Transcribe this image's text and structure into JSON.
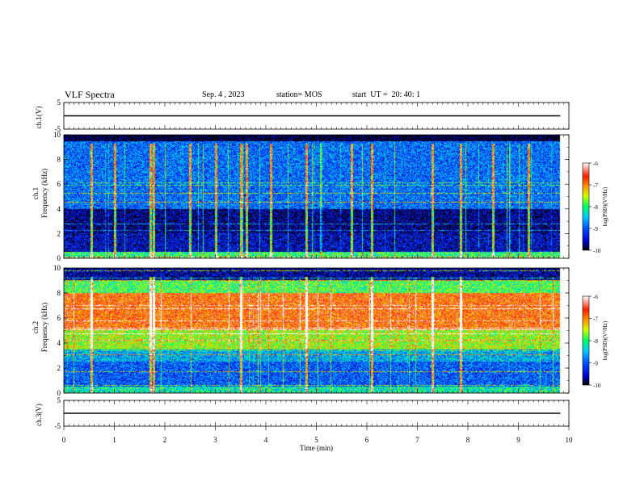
{
  "header": {
    "title": "VLF Spectra",
    "date": "Sep. 4 , 2023",
    "station": "station= MOS",
    "start_ut": "start  UT =  20: 40: 1"
  },
  "chart_data": [
    {
      "type": "line",
      "panel": "ch1-waveform",
      "ylabel": "ch.1(V)",
      "yticks": [
        5,
        -5
      ],
      "ylim": [
        -5,
        5
      ],
      "xlim": [
        0,
        10
      ],
      "trace_level": 0
    },
    {
      "type": "heatmap",
      "panel": "ch1-spectrogram",
      "ylabel_lines": [
        "ch.1",
        "Frequency (kHz)"
      ],
      "ylim": [
        0,
        10
      ],
      "yticks": [
        0,
        2,
        4,
        6,
        8,
        10
      ],
      "xlim": [
        0,
        10
      ],
      "data_end_min": 9.83,
      "colorbar": {
        "label": "log(PSD)(V²/Hz)",
        "range": [
          -10,
          -6
        ],
        "ticks": [
          "-6",
          "-7",
          "-8",
          "-9",
          "-10"
        ]
      },
      "dominant_log_psd_by_band": [
        {
          "band_khz": [
            0,
            0.5
          ],
          "log_psd": -8.0
        },
        {
          "band_khz": [
            0.5,
            2
          ],
          "log_psd": -9.5
        },
        {
          "band_khz": [
            2,
            4
          ],
          "log_psd": -9.7
        },
        {
          "band_khz": [
            4,
            9.5
          ],
          "log_psd": -8.9
        },
        {
          "band_khz": [
            9.5,
            10
          ],
          "log_psd": -10.0
        }
      ],
      "burst_columns_min": [
        0.55,
        1.0,
        1.72,
        1.78,
        2.5,
        3.0,
        3.5,
        3.62,
        4.1,
        4.8,
        5.7,
        6.1,
        7.3,
        7.85,
        8.5,
        9.2
      ]
    },
    {
      "type": "heatmap",
      "panel": "ch2-spectrogram",
      "ylabel_lines": [
        "ch.2",
        "Frequency (kHz)"
      ],
      "ylim": [
        0,
        10
      ],
      "yticks": [
        0,
        2,
        4,
        6,
        8,
        10
      ],
      "xlim": [
        0,
        10
      ],
      "data_end_min": 9.83,
      "colorbar": {
        "label": "log(PSD)(V²/Hz)",
        "range": [
          -10,
          -6
        ],
        "ticks": [
          "-6",
          "-7",
          "-8",
          "-9",
          "-10"
        ]
      },
      "dominant_log_psd_by_band": [
        {
          "band_khz": [
            0,
            0.5
          ],
          "log_psd": -8.2
        },
        {
          "band_khz": [
            0.5,
            2.5
          ],
          "log_psd": -9.0
        },
        {
          "band_khz": [
            2.5,
            3.5
          ],
          "log_psd": -8.6
        },
        {
          "band_khz": [
            3.5,
            5
          ],
          "log_psd": -7.6
        },
        {
          "band_khz": [
            5,
            8
          ],
          "log_psd": -6.8
        },
        {
          "band_khz": [
            8,
            9
          ],
          "log_psd": -7.9
        },
        {
          "band_khz": [
            9,
            10
          ],
          "log_psd": -9.6
        }
      ],
      "burst_columns_min": [
        0.55,
        1.72,
        1.78,
        3.5,
        4.8,
        6.1,
        7.3,
        7.85
      ]
    },
    {
      "type": "line",
      "panel": "ch3-waveform",
      "ylabel": "ch.3(V)",
      "yticks": [
        5,
        -5
      ],
      "ylim": [
        -5,
        5
      ],
      "xlim": [
        0,
        10
      ],
      "trace_level": 0
    }
  ],
  "xaxis": {
    "label": "Time  (min)",
    "ticks": [
      "0",
      "1",
      "2",
      "3",
      "4",
      "5",
      "6",
      "7",
      "8",
      "9",
      "10"
    ]
  },
  "colors": {
    "colormap": [
      "#000000",
      "#0000c8",
      "#0050ff",
      "#00c8ff",
      "#00ff64",
      "#c8ff00",
      "#ffa000",
      "#ff1e00",
      "#ffffff"
    ]
  }
}
